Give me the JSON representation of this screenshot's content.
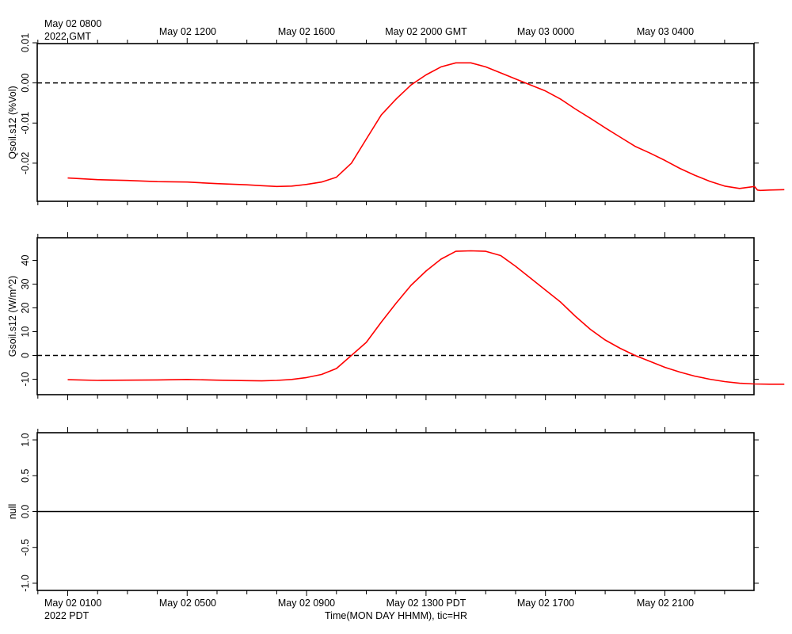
{
  "top_axis": {
    "first_label_line1": "May 02 0800",
    "first_label_line2": "2022 GMT",
    "labels": [
      "May 02 1200",
      "May 02 1600",
      "May 02 2000 GMT",
      "May 03 0000",
      "May 03 0400"
    ]
  },
  "bottom_axis": {
    "first_label_line1": "May 02 0100",
    "first_label_line2": "2022 PDT",
    "labels": [
      "May 02 0500",
      "May 02 0900",
      "May 02 1300 PDT",
      "May 02 1700",
      "May 02 2100"
    ],
    "title": "Time(MON DAY HHMM), tic=HR"
  },
  "colors": {
    "series": "#ff0000",
    "axis": "#000000",
    "zero_line": "#000000"
  },
  "chart_data": [
    {
      "type": "line",
      "ylabel": "Qsoil.s12 (%Vol)",
      "ylim": [
        -0.0295,
        0.0098
      ],
      "yticks": [
        -0.02,
        -0.01,
        0.0,
        0.01
      ],
      "ytick_labels": [
        "-0.02",
        "-0.01",
        "0.00",
        "0.01"
      ],
      "zero_line": "dashed",
      "x_unit": "hours since May 02 0000 PDT",
      "xlim": [
        0,
        24
      ],
      "series": [
        {
          "x": [
            0,
            1,
            2,
            3,
            4,
            5,
            6,
            6.5,
            7,
            7.5,
            8,
            8.5,
            9,
            9.5,
            10,
            10.5,
            11,
            11.5,
            12,
            12.5,
            13,
            13.5,
            14,
            14.5,
            15,
            15.5,
            16,
            16.5,
            17,
            17.5,
            18,
            18.5,
            19,
            19.5,
            20,
            20.5,
            21,
            21.5,
            22,
            22.5,
            23,
            23.1,
            23.2,
            23.5,
            24
          ],
          "y": [
            -0.0237,
            -0.0241,
            -0.0243,
            -0.0246,
            -0.0247,
            -0.0251,
            -0.0254,
            -0.0256,
            -0.0258,
            -0.0257,
            -0.0253,
            -0.0247,
            -0.0235,
            -0.02,
            -0.014,
            -0.008,
            -0.004,
            -0.0005,
            0.002,
            0.004,
            0.005,
            0.005,
            0.004,
            0.0025,
            0.001,
            -0.0005,
            -0.002,
            -0.004,
            -0.0065,
            -0.0088,
            -0.0112,
            -0.0135,
            -0.0158,
            -0.0175,
            -0.0193,
            -0.0213,
            -0.023,
            -0.0245,
            -0.0257,
            -0.0263,
            -0.0258,
            -0.0267,
            -0.0268,
            -0.0267,
            -0.0266
          ]
        }
      ]
    },
    {
      "type": "line",
      "ylabel": "Gsoil.s12 (W/m^2)",
      "ylim": [
        -16.5,
        49.5
      ],
      "yticks": [
        -10,
        0,
        10,
        20,
        30,
        40
      ],
      "ytick_labels": [
        "-10",
        "0",
        "10",
        "20",
        "30",
        "40"
      ],
      "zero_line": "dashed",
      "x_unit": "hours since May 02 0000 PDT",
      "xlim": [
        0,
        24
      ],
      "series": [
        {
          "x": [
            0,
            1,
            2,
            3,
            4,
            5,
            6,
            6.5,
            7,
            7.5,
            8,
            8.5,
            9,
            9.5,
            10,
            10.5,
            11,
            11.5,
            12,
            12.5,
            13,
            13.5,
            14,
            14.5,
            15,
            15.5,
            16,
            16.5,
            17,
            17.5,
            18,
            18.5,
            19,
            19.5,
            20,
            20.5,
            21,
            21.5,
            22,
            22.5,
            23,
            23.5,
            24
          ],
          "y": [
            -10.2,
            -10.5,
            -10.4,
            -10.3,
            -10.1,
            -10.4,
            -10.6,
            -10.7,
            -10.5,
            -10.1,
            -9.3,
            -8.0,
            -5.5,
            0.0,
            5.5,
            14.0,
            22.0,
            29.5,
            35.5,
            40.5,
            43.8,
            44.0,
            43.8,
            42.0,
            37.5,
            32.5,
            27.5,
            22.5,
            16.5,
            11.0,
            6.5,
            3.0,
            0.0,
            -2.5,
            -5.0,
            -7.0,
            -8.7,
            -10.0,
            -11.0,
            -11.7,
            -12.0,
            -12.1,
            -12.1
          ]
        }
      ]
    },
    {
      "type": "line",
      "ylabel": "null",
      "ylim": [
        -1.1,
        1.1
      ],
      "yticks": [
        -1.0,
        -0.5,
        0.0,
        0.5,
        1.0
      ],
      "ytick_labels": [
        "-1.0",
        "-0.5",
        "0.0",
        "0.5",
        "1.0"
      ],
      "zero_line": "solid",
      "x_unit": "hours since May 02 0000 PDT",
      "xlim": [
        0,
        24
      ],
      "series": []
    }
  ]
}
